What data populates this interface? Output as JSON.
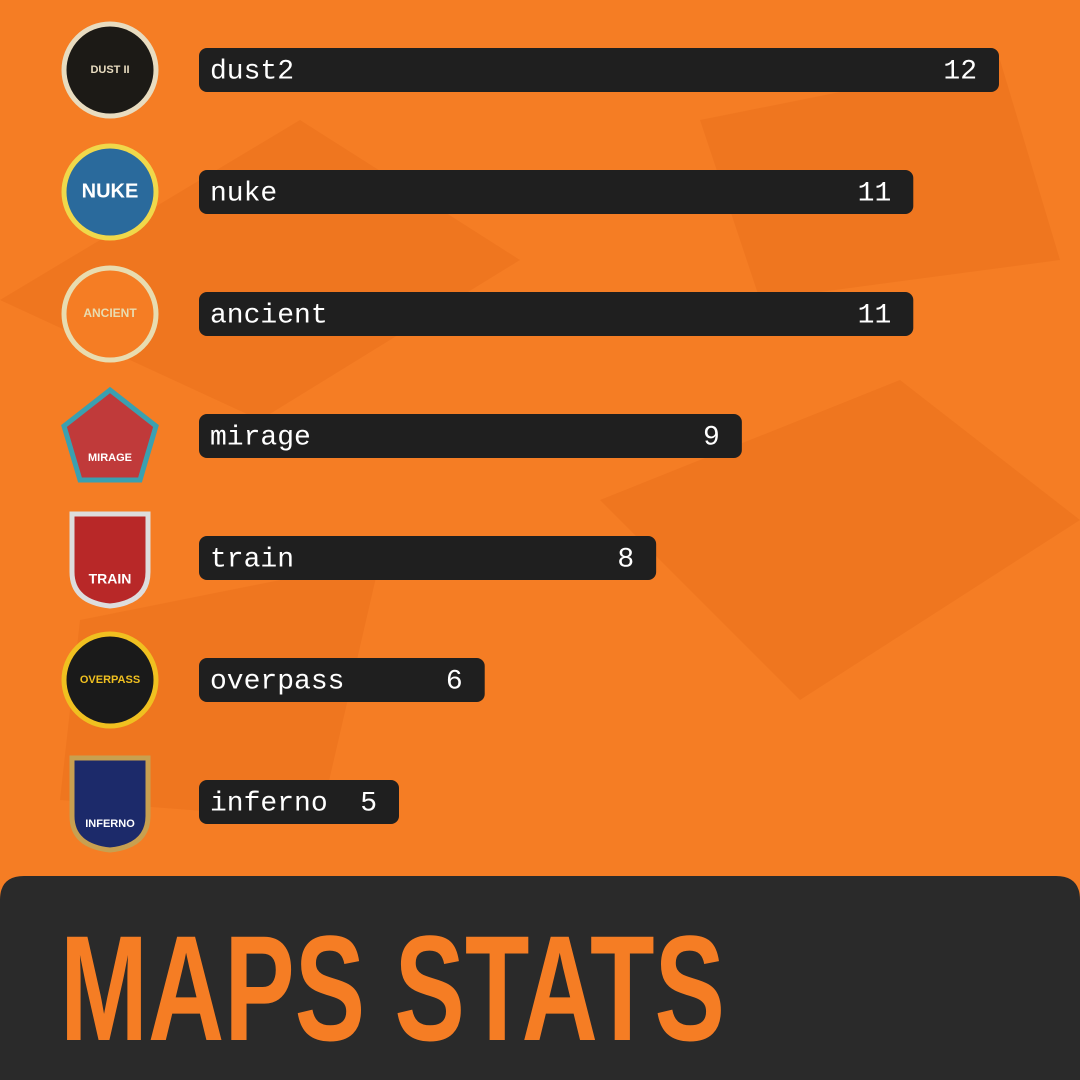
{
  "chart_data": {
    "type": "bar",
    "orientation": "horizontal",
    "title": "MAPS STATS",
    "categories": [
      "dust2",
      "nuke",
      "ancient",
      "mirage",
      "train",
      "overpass",
      "inferno"
    ],
    "values": [
      12,
      11,
      11,
      9,
      8,
      6,
      5
    ],
    "color": "#1f1f1f",
    "icon_labels": [
      "DUST II",
      "NUKE",
      "ANCIENT",
      "MIRAGE",
      "TRAIN",
      "OVERPASS",
      "INFERNO"
    ]
  }
}
